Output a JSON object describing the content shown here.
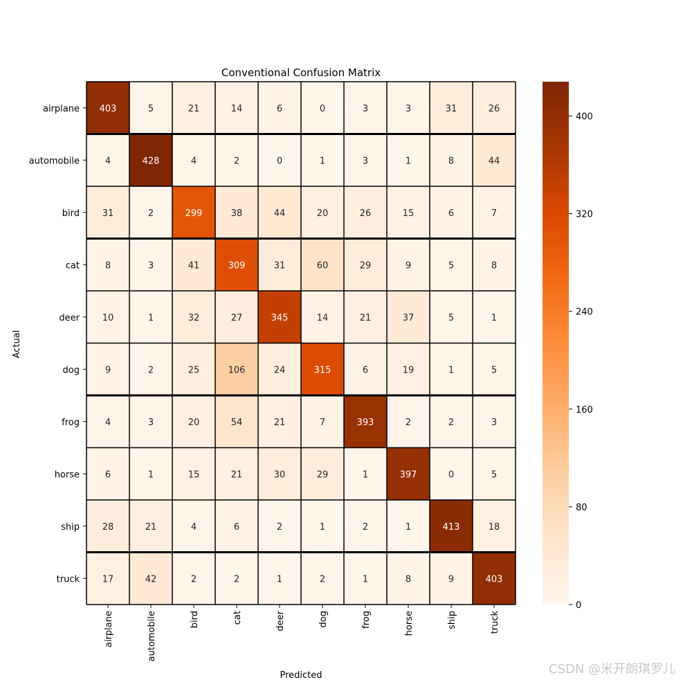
{
  "chart_data": {
    "type": "heatmap",
    "title": "Conventional Confusion Matrix",
    "xlabel": "Predicted",
    "ylabel": "Actual",
    "x_categories": [
      "airplane",
      "automobile",
      "bird",
      "cat",
      "deer",
      "dog",
      "frog",
      "horse",
      "ship",
      "truck"
    ],
    "y_categories": [
      "airplane",
      "automobile",
      "bird",
      "cat",
      "deer",
      "dog",
      "frog",
      "horse",
      "ship",
      "truck"
    ],
    "values": [
      [
        403,
        5,
        21,
        14,
        6,
        0,
        3,
        3,
        31,
        26
      ],
      [
        4,
        428,
        4,
        2,
        0,
        1,
        3,
        1,
        8,
        44
      ],
      [
        31,
        2,
        299,
        38,
        44,
        20,
        26,
        15,
        6,
        7
      ],
      [
        8,
        3,
        41,
        309,
        31,
        60,
        29,
        9,
        5,
        8
      ],
      [
        10,
        1,
        32,
        27,
        345,
        14,
        21,
        37,
        5,
        1
      ],
      [
        9,
        2,
        25,
        106,
        24,
        315,
        6,
        19,
        1,
        5
      ],
      [
        4,
        3,
        20,
        54,
        21,
        7,
        393,
        2,
        2,
        3
      ],
      [
        6,
        1,
        15,
        21,
        30,
        29,
        1,
        397,
        0,
        5
      ],
      [
        28,
        21,
        4,
        6,
        2,
        1,
        2,
        1,
        413,
        18
      ],
      [
        17,
        42,
        2,
        2,
        1,
        2,
        1,
        8,
        9,
        403
      ]
    ],
    "colormap": "Oranges",
    "colorbar": {
      "range": [
        0,
        428
      ],
      "ticks": [
        0,
        80,
        160,
        240,
        320,
        400
      ]
    },
    "colors": {
      "low": "#fff5eb",
      "high": "#7f2704",
      "grid_line": "#000000"
    }
  },
  "watermark": "CSDN @米开朗琪罗儿"
}
